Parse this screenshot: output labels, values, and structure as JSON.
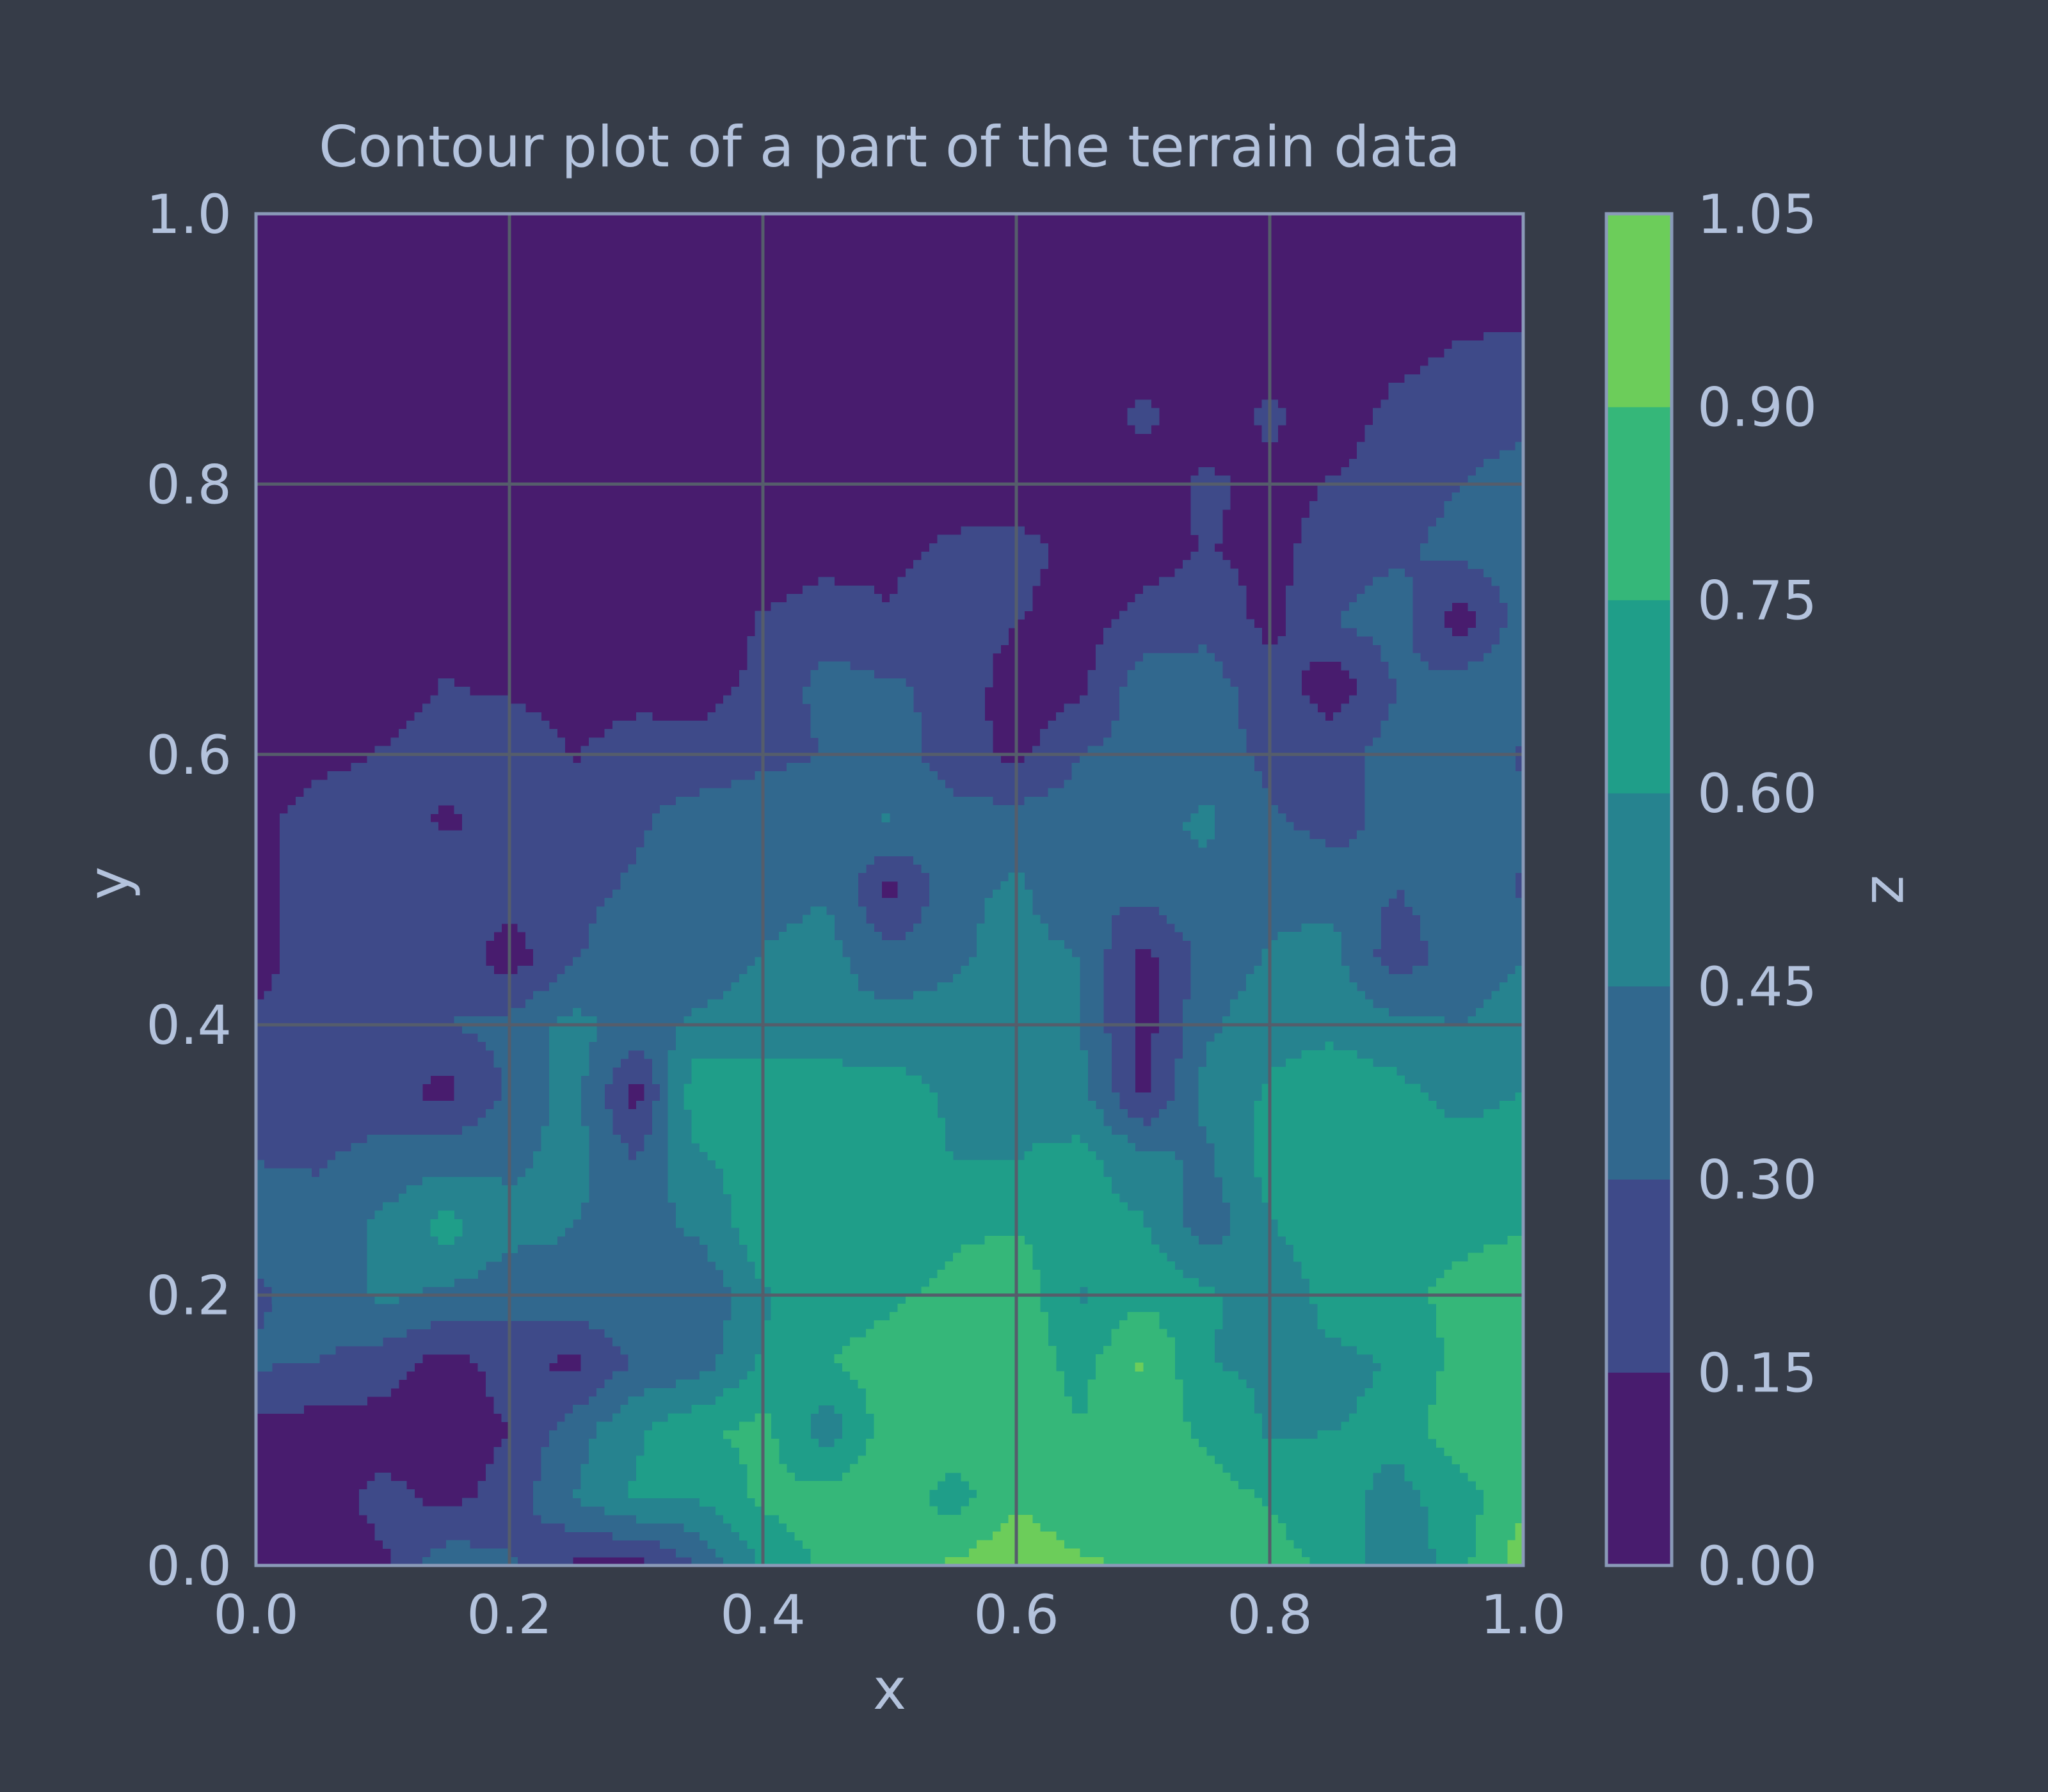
{
  "colors": {
    "background": "#363c48",
    "text": "#b3c2dc",
    "frame": "#8a9ab8",
    "grid": "#555d6b",
    "levels": [
      "#481c6e",
      "#3e4a89",
      "#31688e",
      "#26838f",
      "#1f9e89",
      "#35b779",
      "#6ccd5a",
      "#d0e11c"
    ]
  },
  "chart_data": {
    "type": "contour",
    "title": "Contour plot of a part of the terrain data",
    "xlabel": "x",
    "ylabel": "y",
    "xlim": [
      0.0,
      1.0
    ],
    "ylim": [
      0.0,
      1.0
    ],
    "x_ticks": [
      "0.0",
      "0.2",
      "0.4",
      "0.6",
      "0.8",
      "1.0"
    ],
    "y_ticks": [
      "0.0",
      "0.2",
      "0.4",
      "0.6",
      "0.8",
      "1.0"
    ],
    "grid": true,
    "colorbar": {
      "label": "z",
      "levels": [
        0.0,
        0.15,
        0.3,
        0.45,
        0.6,
        0.75,
        0.9,
        1.05
      ],
      "tick_labels": [
        "0.00",
        "0.15",
        "0.30",
        "0.45",
        "0.60",
        "0.75",
        "0.90",
        "1.05"
      ]
    },
    "x": [
      0.0,
      0.05,
      0.1,
      0.15,
      0.2,
      0.25,
      0.3,
      0.35,
      0.4,
      0.45,
      0.5,
      0.55,
      0.6,
      0.65,
      0.7,
      0.75,
      0.8,
      0.85,
      0.9,
      0.95,
      1.0
    ],
    "y": [
      0.0,
      0.05,
      0.1,
      0.15,
      0.2,
      0.25,
      0.3,
      0.35,
      0.4,
      0.45,
      0.5,
      0.55,
      0.6,
      0.65,
      0.7,
      0.75,
      0.8,
      0.85,
      0.9,
      0.95,
      1.0
    ],
    "z": [
      [
        0.08,
        0.08,
        0.12,
        0.4,
        0.32,
        0.12,
        0.08,
        0.3,
        0.62,
        0.78,
        0.88,
        0.92,
        1.02,
        0.92,
        0.88,
        0.85,
        0.8,
        0.72,
        0.45,
        0.7,
        1.0
      ],
      [
        0.08,
        0.08,
        0.2,
        0.1,
        0.22,
        0.45,
        0.62,
        0.62,
        0.78,
        0.82,
        0.85,
        0.68,
        0.88,
        0.78,
        0.86,
        0.82,
        0.74,
        0.66,
        0.55,
        0.68,
        0.85
      ],
      [
        0.08,
        0.08,
        0.08,
        0.05,
        0.15,
        0.38,
        0.58,
        0.72,
        0.8,
        0.5,
        0.84,
        0.88,
        0.8,
        0.76,
        0.85,
        0.72,
        0.58,
        0.6,
        0.64,
        0.86,
        0.9
      ],
      [
        0.32,
        0.3,
        0.22,
        0.08,
        0.22,
        0.1,
        0.32,
        0.38,
        0.62,
        0.74,
        0.82,
        0.9,
        0.85,
        0.7,
        0.92,
        0.6,
        0.58,
        0.55,
        0.62,
        0.8,
        0.88
      ],
      [
        0.28,
        0.35,
        0.48,
        0.42,
        0.35,
        0.4,
        0.45,
        0.32,
        0.58,
        0.68,
        0.72,
        0.8,
        0.86,
        0.58,
        0.72,
        0.64,
        0.45,
        0.68,
        0.72,
        0.78,
        0.82
      ],
      [
        0.35,
        0.38,
        0.48,
        0.66,
        0.5,
        0.45,
        0.4,
        0.48,
        0.7,
        0.72,
        0.62,
        0.72,
        0.74,
        0.66,
        0.62,
        0.36,
        0.58,
        0.74,
        0.7,
        0.72,
        0.74
      ],
      [
        0.3,
        0.28,
        0.36,
        0.4,
        0.42,
        0.5,
        0.3,
        0.58,
        0.68,
        0.74,
        0.64,
        0.6,
        0.6,
        0.65,
        0.5,
        0.42,
        0.66,
        0.7,
        0.72,
        0.66,
        0.7
      ],
      [
        0.2,
        0.25,
        0.2,
        0.1,
        0.32,
        0.52,
        0.08,
        0.75,
        0.68,
        0.7,
        0.66,
        0.58,
        0.55,
        0.5,
        0.12,
        0.5,
        0.62,
        0.72,
        0.64,
        0.55,
        0.6
      ],
      [
        0.18,
        0.2,
        0.22,
        0.3,
        0.35,
        0.5,
        0.4,
        0.48,
        0.52,
        0.48,
        0.5,
        0.52,
        0.48,
        0.46,
        0.08,
        0.42,
        0.55,
        0.55,
        0.5,
        0.44,
        0.52
      ],
      [
        0.1,
        0.22,
        0.25,
        0.26,
        0.06,
        0.28,
        0.42,
        0.35,
        0.46,
        0.5,
        0.35,
        0.42,
        0.52,
        0.45,
        0.1,
        0.36,
        0.46,
        0.5,
        0.2,
        0.4,
        0.44
      ],
      [
        0.08,
        0.28,
        0.26,
        0.28,
        0.24,
        0.26,
        0.32,
        0.3,
        0.4,
        0.44,
        0.1,
        0.4,
        0.48,
        0.3,
        0.35,
        0.4,
        0.42,
        0.4,
        0.3,
        0.38,
        0.28
      ],
      [
        0.1,
        0.24,
        0.26,
        0.12,
        0.22,
        0.22,
        0.28,
        0.38,
        0.4,
        0.42,
        0.46,
        0.36,
        0.38,
        0.36,
        0.4,
        0.48,
        0.32,
        0.24,
        0.36,
        0.3,
        0.35
      ],
      [
        0.06,
        0.1,
        0.16,
        0.2,
        0.28,
        0.14,
        0.22,
        0.2,
        0.26,
        0.3,
        0.38,
        0.22,
        0.1,
        0.3,
        0.36,
        0.38,
        0.26,
        0.24,
        0.36,
        0.4,
        0.28
      ],
      [
        0.06,
        0.06,
        0.08,
        0.16,
        0.12,
        0.08,
        0.1,
        0.1,
        0.18,
        0.36,
        0.32,
        0.26,
        0.06,
        0.12,
        0.38,
        0.36,
        0.22,
        0.06,
        0.3,
        0.38,
        0.44
      ],
      [
        0.06,
        0.06,
        0.06,
        0.08,
        0.08,
        0.06,
        0.06,
        0.08,
        0.16,
        0.22,
        0.16,
        0.24,
        0.16,
        0.08,
        0.2,
        0.26,
        0.1,
        0.3,
        0.38,
        0.05,
        0.38
      ],
      [
        0.06,
        0.06,
        0.06,
        0.06,
        0.06,
        0.06,
        0.06,
        0.06,
        0.08,
        0.1,
        0.12,
        0.18,
        0.2,
        0.1,
        0.08,
        0.16,
        0.1,
        0.22,
        0.28,
        0.34,
        0.4
      ],
      [
        0.06,
        0.06,
        0.06,
        0.06,
        0.06,
        0.06,
        0.06,
        0.06,
        0.06,
        0.06,
        0.06,
        0.08,
        0.08,
        0.06,
        0.08,
        0.18,
        0.1,
        0.16,
        0.24,
        0.3,
        0.36
      ],
      [
        0.06,
        0.06,
        0.06,
        0.06,
        0.06,
        0.06,
        0.06,
        0.06,
        0.06,
        0.06,
        0.06,
        0.06,
        0.06,
        0.06,
        0.18,
        0.06,
        0.18,
        0.06,
        0.2,
        0.24,
        0.26
      ],
      [
        0.06,
        0.06,
        0.06,
        0.06,
        0.06,
        0.06,
        0.06,
        0.06,
        0.06,
        0.06,
        0.06,
        0.06,
        0.06,
        0.06,
        0.06,
        0.06,
        0.06,
        0.06,
        0.1,
        0.16,
        0.18
      ],
      [
        0.06,
        0.06,
        0.06,
        0.06,
        0.06,
        0.06,
        0.06,
        0.06,
        0.06,
        0.06,
        0.06,
        0.06,
        0.06,
        0.06,
        0.06,
        0.06,
        0.06,
        0.06,
        0.06,
        0.06,
        0.08
      ],
      [
        0.06,
        0.06,
        0.06,
        0.06,
        0.06,
        0.06,
        0.06,
        0.06,
        0.06,
        0.06,
        0.06,
        0.06,
        0.06,
        0.06,
        0.06,
        0.06,
        0.06,
        0.06,
        0.06,
        0.06,
        0.06
      ]
    ]
  }
}
